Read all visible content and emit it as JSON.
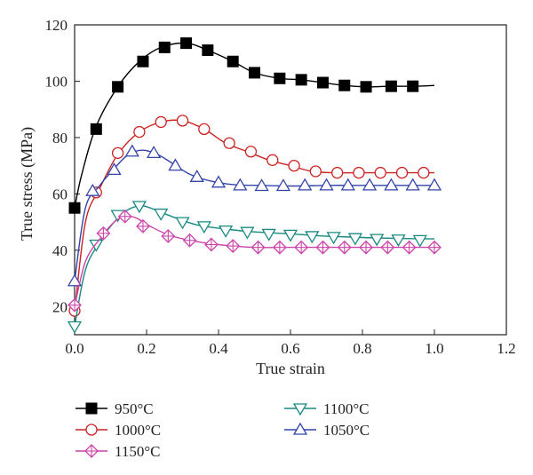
{
  "chart_data": {
    "type": "line",
    "title": "",
    "xlabel": "True strain",
    "ylabel": "True stress (MPa)",
    "xlim": [
      0.0,
      1.2
    ],
    "ylim": [
      10,
      120
    ],
    "x_ticks": [
      "0.0",
      "0.2",
      "0.4",
      "0.6",
      "0.8",
      "1.0",
      "1.2"
    ],
    "y_ticks": [
      "20",
      "40",
      "60",
      "80",
      "100",
      "120"
    ],
    "grid": false,
    "legend_position": "bottom",
    "series": [
      {
        "name": "950°C",
        "color": "#000000",
        "marker": "filled-square",
        "curve_x": [
          0,
          0.02,
          0.06,
          0.12,
          0.18,
          0.24,
          0.31,
          0.37,
          0.44,
          0.5,
          0.57,
          0.63,
          0.69,
          0.75,
          0.81,
          0.87,
          0.94,
          1.0
        ],
        "curve_y": [
          55,
          67,
          84,
          98,
          107,
          112,
          113.5,
          111,
          107,
          103,
          101,
          100.5,
          99.5,
          98.5,
          98,
          98.2,
          98.2,
          98.5
        ],
        "markers_x": [
          0,
          0.06,
          0.12,
          0.19,
          0.25,
          0.31,
          0.37,
          0.44,
          0.5,
          0.57,
          0.63,
          0.69,
          0.75,
          0.81,
          0.88,
          0.94
        ],
        "markers_y": [
          55,
          83,
          98,
          107,
          112,
          113.5,
          111,
          107,
          103,
          101,
          100.5,
          99.5,
          98.5,
          98,
          98.2,
          98.2
        ]
      },
      {
        "name": "1000°C",
        "color": "#cc2222",
        "marker": "open-circle",
        "curve_x": [
          0,
          0.03,
          0.07,
          0.12,
          0.18,
          0.24,
          0.3,
          0.36,
          0.42,
          0.48,
          0.54,
          0.6,
          0.66,
          0.72,
          0.78,
          0.84,
          0.9,
          0.96,
          1.0
        ],
        "curve_y": [
          18,
          50,
          62,
          74,
          82,
          85.5,
          86,
          83,
          78,
          75,
          72,
          70,
          68,
          67.5,
          67.5,
          67.5,
          67.5,
          67.5,
          67.5
        ],
        "markers_x": [
          0,
          0.06,
          0.12,
          0.18,
          0.24,
          0.3,
          0.36,
          0.43,
          0.49,
          0.55,
          0.61,
          0.67,
          0.73,
          0.79,
          0.85,
          0.91,
          0.97
        ],
        "markers_y": [
          18.5,
          60.5,
          74.5,
          82,
          85.5,
          86,
          83,
          78,
          75,
          72,
          70,
          68,
          67.5,
          67.5,
          67.5,
          67.5,
          67.5
        ]
      },
      {
        "name": "1050°C",
        "color": "#3344aa",
        "marker": "open-triangle-up",
        "curve_x": [
          0,
          0.03,
          0.07,
          0.11,
          0.15,
          0.19,
          0.23,
          0.27,
          0.32,
          0.38,
          0.45,
          0.52,
          0.6,
          0.7,
          0.8,
          0.9,
          1.0
        ],
        "curve_y": [
          29,
          55,
          63,
          69,
          74,
          75.5,
          74,
          71,
          67,
          64.5,
          63.2,
          63,
          62.8,
          63,
          63,
          63,
          63
        ],
        "markers_x": [
          0,
          0.05,
          0.11,
          0.16,
          0.22,
          0.28,
          0.34,
          0.4,
          0.46,
          0.52,
          0.58,
          0.64,
          0.7,
          0.76,
          0.82,
          0.88,
          0.94,
          1.0
        ],
        "markers_y": [
          29,
          61,
          68.5,
          75,
          74.5,
          70,
          66,
          64,
          63,
          62.8,
          62.8,
          63,
          63,
          63,
          63,
          63,
          63,
          63
        ]
      },
      {
        "name": "1100°C",
        "color": "#1a8a80",
        "marker": "open-triangle-down",
        "curve_x": [
          0,
          0.03,
          0.07,
          0.11,
          0.15,
          0.19,
          0.23,
          0.28,
          0.34,
          0.42,
          0.5,
          0.6,
          0.7,
          0.8,
          0.9,
          1.0
        ],
        "curve_y": [
          13,
          33,
          43,
          50,
          54.5,
          55.7,
          54,
          51.5,
          49,
          47.5,
          46.5,
          45.8,
          45,
          44.5,
          44.2,
          44
        ],
        "markers_x": [
          0,
          0.06,
          0.12,
          0.18,
          0.24,
          0.3,
          0.36,
          0.42,
          0.48,
          0.54,
          0.6,
          0.66,
          0.72,
          0.78,
          0.84,
          0.9,
          0.96
        ],
        "markers_y": [
          13,
          42,
          52.5,
          55.7,
          53,
          50,
          48.5,
          47,
          46.5,
          45.8,
          45.5,
          45,
          44.7,
          44.3,
          44,
          43.8,
          43.6
        ]
      },
      {
        "name": "1150°C",
        "color": "#cc44aa",
        "marker": "crossed-diamond",
        "curve_x": [
          0,
          0.03,
          0.07,
          0.11,
          0.14,
          0.17,
          0.21,
          0.26,
          0.32,
          0.4,
          0.5,
          0.6,
          0.7,
          0.8,
          0.9,
          1.0
        ],
        "curve_y": [
          20,
          36,
          44,
          50,
          52,
          51.5,
          48.5,
          45.5,
          43.5,
          42,
          41,
          41,
          41,
          41,
          41,
          41
        ],
        "markers_x": [
          0,
          0.08,
          0.14,
          0.19,
          0.26,
          0.32,
          0.38,
          0.44,
          0.51,
          0.57,
          0.63,
          0.69,
          0.75,
          0.81,
          0.87,
          0.93,
          1.0
        ],
        "markers_y": [
          20.5,
          46,
          52,
          48.5,
          45,
          43.5,
          42,
          41.5,
          41,
          41,
          41,
          41,
          41,
          41,
          41,
          41,
          41
        ]
      }
    ],
    "legend_order": [
      0,
      3,
      1,
      2,
      4
    ]
  }
}
